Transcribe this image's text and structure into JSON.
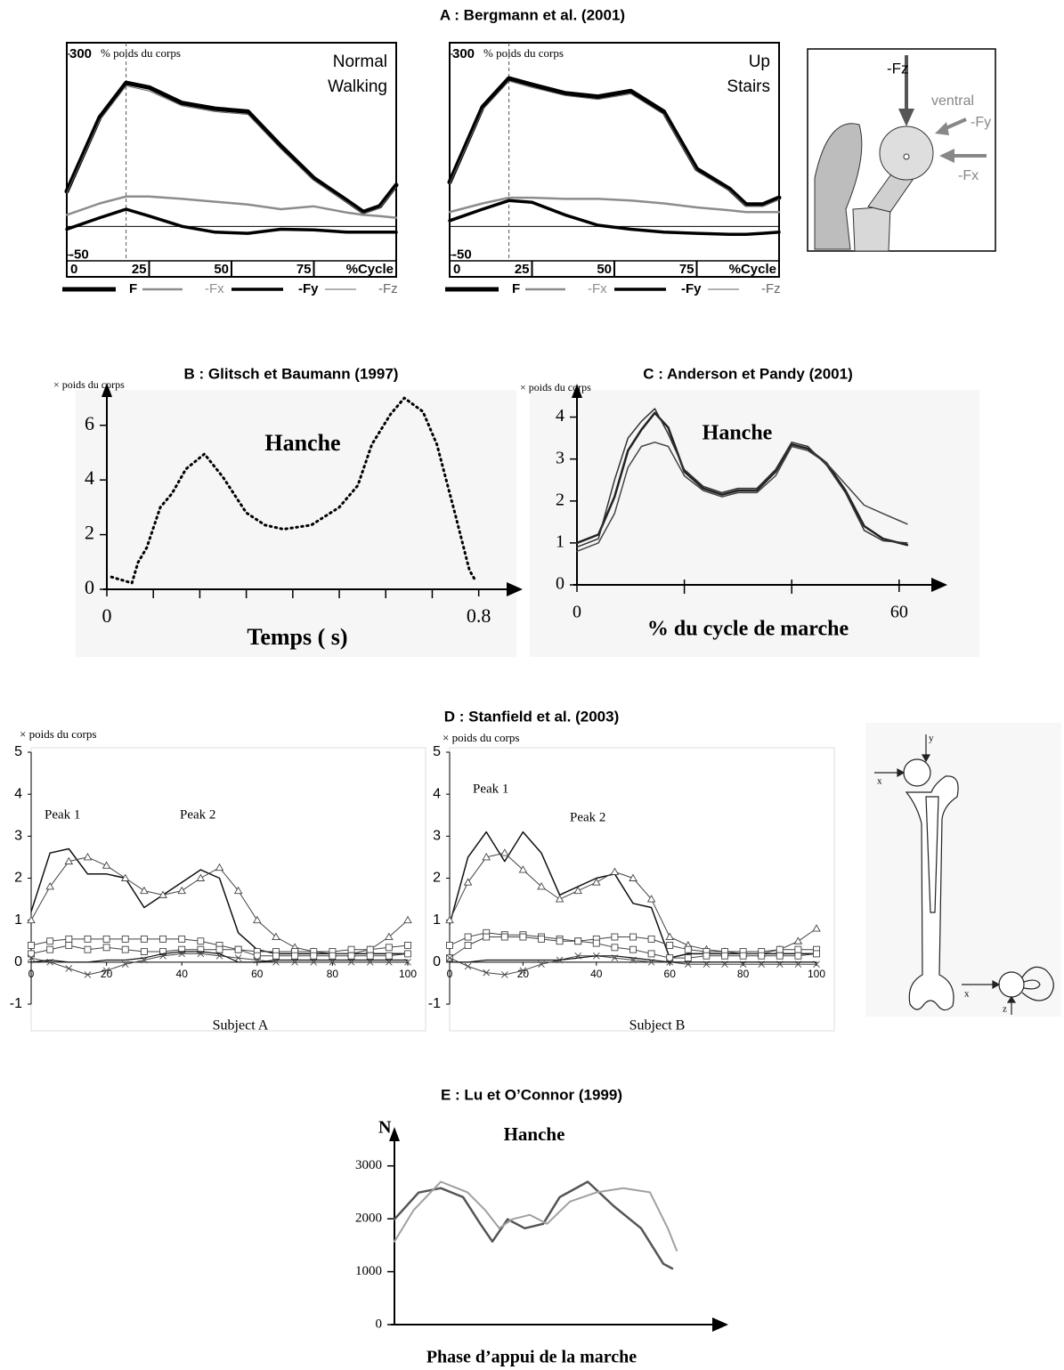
{
  "headings": [
    "A : Bergmann et al. (2001)",
    "B : Glitsch et Baumann (1997)",
    "C : Anderson et Pandy (2001)",
    "D : Stanfield et al. (2003)",
    "E : Lu et O’Connor (1999)"
  ],
  "diagrams": [
    {
      "labels": [
        "-Fz",
        "ventral",
        "-Fy",
        "-Fx"
      ]
    },
    {
      "labels": [
        "y",
        "x",
        "x",
        "z"
      ]
    }
  ],
  "chart_data": [
    {
      "type": "line",
      "annotation": [
        "Normal",
        "Walking"
      ],
      "ylabel": "% poids du corps",
      "xlabel": "%Cycle",
      "xlim": [
        0,
        100
      ],
      "ylim": [
        -60,
        320
      ],
      "xticks": [
        0,
        25,
        50,
        75
      ],
      "yticks": [
        -50,
        300
      ],
      "vline": 18,
      "legend": "bottom",
      "x": [
        0,
        10,
        18,
        25,
        35,
        45,
        55,
        65,
        75,
        85,
        90,
        95,
        100
      ],
      "series": [
        {
          "name": "F",
          "color": "#000000",
          "width": 5,
          "values": [
            61,
            190,
            250,
            242,
            215,
            205,
            200,
            140,
            84,
            45,
            25,
            35,
            72
          ]
        },
        {
          "name": "-Fx",
          "color": "#8c8c8c",
          "width": 2.5,
          "values": [
            20,
            40,
            52,
            52,
            48,
            43,
            38,
            30,
            35,
            24,
            20,
            18,
            15
          ]
        },
        {
          "name": "-Fy",
          "color": "#000000",
          "width": 3.5,
          "values": [
            -5,
            15,
            30,
            18,
            0,
            -10,
            -12,
            -5,
            -6,
            -10,
            -10,
            -10,
            -10
          ]
        },
        {
          "name": "-Fz",
          "color": "#666666",
          "width": 1,
          "values": [
            58,
            185,
            245,
            236,
            210,
            200,
            195,
            135,
            80,
            42,
            22,
            32,
            68
          ]
        }
      ]
    },
    {
      "type": "line",
      "annotation": [
        "Up",
        "Stairs"
      ],
      "ylabel": "% poids du corps",
      "xlabel": "%Cycle",
      "xlim": [
        0,
        100
      ],
      "ylim": [
        -60,
        320
      ],
      "xticks": [
        0,
        25,
        50,
        75
      ],
      "yticks": [
        -50,
        300
      ],
      "vline": 18,
      "legend": "bottom",
      "x": [
        0,
        10,
        18,
        25,
        35,
        45,
        55,
        65,
        75,
        85,
        90,
        95,
        100
      ],
      "series": [
        {
          "name": "F",
          "color": "#000000",
          "width": 5,
          "values": [
            77,
            208,
            258,
            247,
            232,
            226,
            236,
            200,
            100,
            65,
            38,
            38,
            50
          ]
        },
        {
          "name": "-Fx",
          "color": "#8c8c8c",
          "width": 2.5,
          "values": [
            25,
            40,
            50,
            50,
            48,
            48,
            45,
            40,
            33,
            28,
            25,
            25,
            25
          ]
        },
        {
          "name": "-Fy",
          "color": "#000000",
          "width": 3.5,
          "values": [
            10,
            30,
            45,
            42,
            20,
            2,
            -5,
            -10,
            -12,
            -14,
            -14,
            -12,
            -10
          ]
        },
        {
          "name": "-Fz",
          "color": "#666666",
          "width": 1,
          "values": [
            74,
            203,
            253,
            242,
            228,
            221,
            231,
            195,
            96,
            62,
            35,
            35,
            47
          ]
        }
      ]
    },
    {
      "type": "line",
      "annotation": [
        "Hanche"
      ],
      "ylabel": "× poids du corps",
      "xlabel": "Temps ( s)",
      "xlim": [
        0,
        0.86
      ],
      "ylim": [
        0,
        7.1
      ],
      "xticks": [
        0,
        0.8
      ],
      "minor_xticks": [
        0.1,
        0.2,
        0.3,
        0.4,
        0.5,
        0.6,
        0.7
      ],
      "yticks": [
        0,
        2,
        4,
        6
      ],
      "x": [
        0.01,
        0.054,
        0.067,
        0.086,
        0.115,
        0.14,
        0.17,
        0.21,
        0.25,
        0.3,
        0.34,
        0.38,
        0.44,
        0.5,
        0.54,
        0.57,
        0.61,
        0.64,
        0.68,
        0.71,
        0.75,
        0.78,
        0.79
      ],
      "series": [
        {
          "color": "#000000",
          "width": 3,
          "dash": "dotted",
          "values": [
            0.45,
            0.23,
            0.98,
            1.53,
            3.0,
            3.5,
            4.4,
            4.95,
            4.1,
            2.8,
            2.35,
            2.2,
            2.35,
            3.0,
            3.8,
            5.3,
            6.4,
            7.0,
            6.5,
            5.3,
            2.7,
            0.7,
            0.4
          ]
        }
      ]
    },
    {
      "type": "line",
      "annotation": [
        "Hanche"
      ],
      "ylabel": "× poids du corps",
      "xlabel": "% du cycle de marche",
      "xlim": [
        0,
        66
      ],
      "ylim": [
        0,
        4.5
      ],
      "xticks": [
        0,
        60
      ],
      "minor_xticks": [
        20,
        40
      ],
      "yticks": [
        0,
        1,
        2,
        3,
        4
      ],
      "x": [
        0,
        4,
        7,
        9.5,
        12,
        14.5,
        17,
        20,
        23.5,
        27,
        30,
        33.5,
        37,
        40,
        43,
        46.5,
        50,
        53.5,
        57,
        61.5
      ],
      "series": [
        {
          "color": "#222222",
          "width": 2.5,
          "values": [
            1.0,
            1.2,
            2.1,
            3.2,
            3.7,
            4.1,
            3.75,
            2.7,
            2.3,
            2.15,
            2.25,
            2.25,
            2.7,
            3.35,
            3.25,
            2.9,
            2.25,
            1.4,
            1.1,
            0.95
          ]
        },
        {
          "color": "#444444",
          "width": 1.5,
          "values": [
            0.8,
            1.0,
            1.7,
            2.8,
            3.3,
            3.4,
            3.3,
            2.6,
            2.25,
            2.1,
            2.2,
            2.2,
            2.6,
            3.3,
            3.2,
            2.9,
            2.4,
            1.9,
            1.7,
            1.45
          ]
        },
        {
          "color": "#333333",
          "width": 1.5,
          "values": [
            0.9,
            1.1,
            2.5,
            3.5,
            3.9,
            4.2,
            3.6,
            2.75,
            2.35,
            2.2,
            2.3,
            2.3,
            2.75,
            3.4,
            3.3,
            2.85,
            2.2,
            1.3,
            1.05,
            1.0
          ]
        }
      ]
    },
    {
      "type": "line",
      "annotation": [
        "Peak 1",
        "Peak 2"
      ],
      "ylabel": "× poids du corps",
      "xlabel": "Subject A",
      "xlim": [
        0,
        100
      ],
      "ylim": [
        -1,
        5
      ],
      "xticks": [
        0,
        20,
        40,
        60,
        80,
        100
      ],
      "yticks": [
        -1,
        0,
        1,
        2,
        3,
        4,
        5
      ],
      "x": [
        0,
        5,
        10,
        15,
        20,
        25,
        30,
        35,
        40,
        45,
        50,
        55,
        60,
        65,
        70,
        75,
        80,
        85,
        90,
        95,
        100
      ],
      "series": [
        {
          "color": "#111111",
          "width": 1.5,
          "values": [
            1.2,
            2.6,
            2.7,
            2.1,
            2.1,
            2.0,
            1.3,
            1.6,
            1.9,
            2.2,
            2.0,
            0.7,
            0.3,
            0.2,
            0.2,
            0.2,
            0.2,
            0.2,
            0.2,
            0.2,
            0.2
          ]
        },
        {
          "color": "#444444",
          "width": 1,
          "marker": "triangle",
          "values": [
            1.0,
            1.8,
            2.4,
            2.5,
            2.3,
            2.0,
            1.7,
            1.6,
            1.7,
            2.0,
            2.25,
            1.7,
            1.0,
            0.6,
            0.35,
            0.25,
            0.2,
            0.2,
            0.3,
            0.6,
            1.0
          ]
        },
        {
          "color": "#444444",
          "width": 1,
          "marker": "square",
          "values": [
            0.4,
            0.5,
            0.55,
            0.55,
            0.55,
            0.55,
            0.55,
            0.55,
            0.55,
            0.5,
            0.4,
            0.3,
            0.25,
            0.25,
            0.25,
            0.25,
            0.25,
            0.3,
            0.3,
            0.35,
            0.4
          ]
        },
        {
          "color": "#444444",
          "width": 1,
          "marker": "square",
          "values": [
            0.2,
            0.3,
            0.4,
            0.3,
            0.35,
            0.3,
            0.25,
            0.25,
            0.3,
            0.3,
            0.3,
            0.3,
            0.15,
            0.15,
            0.15,
            0.15,
            0.15,
            0.15,
            0.15,
            0.15,
            0.2
          ]
        },
        {
          "color": "#444444",
          "width": 1,
          "marker": "cross",
          "values": [
            0.1,
            0.0,
            -0.15,
            -0.3,
            -0.2,
            -0.05,
            0.05,
            0.15,
            0.2,
            0.2,
            0.15,
            0.1,
            0.05,
            0.0,
            0.0,
            0.0,
            0.0,
            0.0,
            0.0,
            0.0,
            0.0
          ]
        },
        {
          "color": "#111111",
          "width": 1.2,
          "values": [
            0.0,
            0.05,
            0.0,
            0.0,
            0.05,
            0.05,
            0.1,
            0.2,
            0.25,
            0.25,
            0.2,
            0.0,
            0.0,
            0.05,
            0.05,
            0.05,
            0.05,
            0.05,
            0.05,
            0.05,
            0.05
          ]
        }
      ]
    },
    {
      "type": "line",
      "annotation": [
        "Peak 1",
        "Peak 2"
      ],
      "ylabel": "× poids du corps",
      "xlabel": "Subject B",
      "xlim": [
        0,
        100
      ],
      "ylim": [
        -1,
        5
      ],
      "xticks": [
        0,
        20,
        40,
        60,
        80,
        100
      ],
      "yticks": [
        -1,
        0,
        1,
        2,
        3,
        4,
        5
      ],
      "x": [
        0,
        5,
        10,
        15,
        20,
        25,
        30,
        35,
        40,
        45,
        50,
        55,
        60,
        65,
        70,
        75,
        80,
        85,
        90,
        95,
        100
      ],
      "series": [
        {
          "color": "#111111",
          "width": 1.5,
          "values": [
            0.9,
            2.5,
            3.1,
            2.4,
            3.1,
            2.6,
            1.6,
            1.8,
            2.0,
            2.1,
            1.4,
            1.3,
            0.1,
            0.2,
            0.2,
            0.2,
            0.2,
            0.2,
            0.2,
            0.2,
            0.2
          ]
        },
        {
          "color": "#444444",
          "width": 1,
          "marker": "triangle",
          "values": [
            1.0,
            1.9,
            2.5,
            2.6,
            2.2,
            1.8,
            1.5,
            1.7,
            1.9,
            2.15,
            2.0,
            1.5,
            0.6,
            0.4,
            0.3,
            0.25,
            0.2,
            0.2,
            0.3,
            0.5,
            0.8
          ]
        },
        {
          "color": "#444444",
          "width": 1,
          "marker": "square",
          "values": [
            0.4,
            0.6,
            0.7,
            0.65,
            0.65,
            0.6,
            0.55,
            0.5,
            0.55,
            0.6,
            0.6,
            0.55,
            0.4,
            0.3,
            0.25,
            0.25,
            0.25,
            0.25,
            0.3,
            0.3,
            0.3
          ]
        },
        {
          "color": "#444444",
          "width": 1,
          "marker": "square",
          "values": [
            0.1,
            0.4,
            0.6,
            0.6,
            0.6,
            0.55,
            0.5,
            0.5,
            0.45,
            0.35,
            0.3,
            0.2,
            0.1,
            0.1,
            0.15,
            0.15,
            0.15,
            0.15,
            0.15,
            0.15,
            0.2
          ]
        },
        {
          "color": "#444444",
          "width": 1,
          "marker": "cross",
          "values": [
            0.1,
            -0.1,
            -0.25,
            -0.3,
            -0.2,
            -0.05,
            0.05,
            0.15,
            0.15,
            0.1,
            0.05,
            0.0,
            0.0,
            -0.05,
            -0.05,
            -0.05,
            -0.05,
            -0.05,
            -0.05,
            -0.05,
            -0.05
          ]
        },
        {
          "color": "#111111",
          "width": 1.2,
          "values": [
            0.0,
            0.0,
            0.05,
            0.05,
            0.05,
            0.05,
            0.05,
            0.1,
            0.15,
            0.15,
            0.1,
            0.05,
            0.0,
            0.0,
            0.0,
            0.0,
            0.0,
            0.0,
            0.0,
            0.0,
            0.0
          ]
        }
      ]
    },
    {
      "type": "line",
      "annotation": [
        "Hanche"
      ],
      "ylabel": "N",
      "xlabel": "Phase d’appui de la marche",
      "xlim": [
        0,
        100
      ],
      "ylim": [
        0,
        3500
      ],
      "yticks": [
        0,
        1000,
        2000,
        3000
      ],
      "series": [
        {
          "color": "#555555",
          "width": 2.5,
          "x": [
            0,
            7.6,
            14.6,
            21.6,
            27,
            30.8,
            35.6,
            41,
            46.8,
            52,
            60.8,
            69,
            77.6,
            84.6,
            87.4
          ],
          "values": [
            1990,
            2495,
            2580,
            2410,
            1905,
            1570,
            1990,
            1820,
            1905,
            2410,
            2700,
            2240,
            1820,
            1150,
            1060
          ]
        },
        {
          "color": "#a0a0a0",
          "width": 2,
          "x": [
            0,
            6,
            14.6,
            23,
            28.6,
            33,
            37,
            42.6,
            48,
            55.2,
            63.6,
            72,
            80.4,
            86,
            88.8
          ],
          "values": [
            1570,
            2160,
            2700,
            2500,
            2160,
            1820,
            1990,
            2075,
            1905,
            2325,
            2500,
            2580,
            2500,
            1820,
            1400
          ]
        }
      ]
    }
  ]
}
